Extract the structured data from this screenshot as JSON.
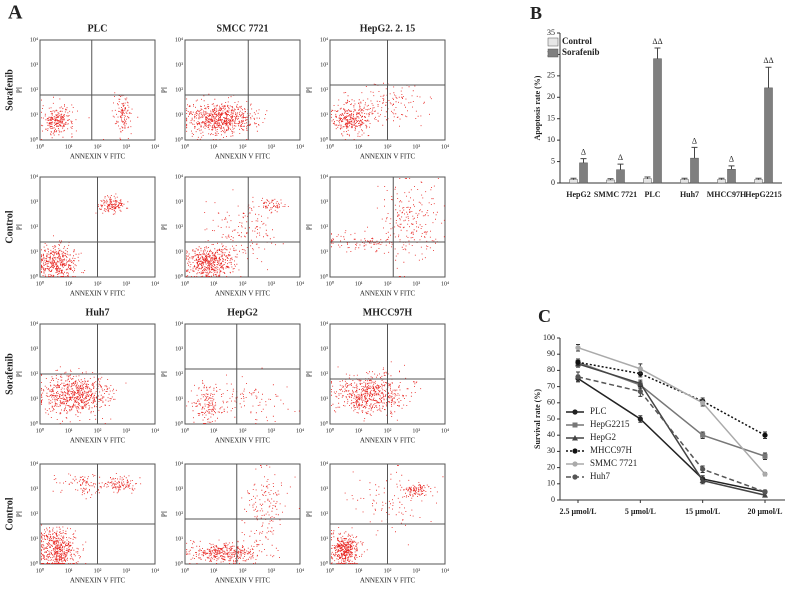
{
  "panel_labels": [
    "A",
    "B",
    "C"
  ],
  "flow": {
    "titles": [
      "PLC",
      "SMCC 7721",
      "HepG2. 2. 15",
      "Huh7",
      "HepG2",
      "MHCC97H"
    ],
    "row_labels": [
      "Sorafenib",
      "Control",
      "Sorafenib",
      "Control"
    ],
    "x_label": "ANNEXIN V FITC",
    "y_label": "PI",
    "ticks": [
      {
        "value": 1,
        "label": "10⁰"
      },
      {
        "value": 10,
        "label": "10¹"
      },
      {
        "value": 100,
        "label": "10²"
      },
      {
        "value": 1000,
        "label": "10³"
      },
      {
        "value": 10000,
        "label": "10⁴"
      }
    ]
  },
  "chart_data": [
    {
      "type": "bar",
      "y_label": "Apoptosis rate (%)",
      "categories": [
        "HepG2",
        "SMMC 7721",
        "PLC",
        "Huh7",
        "MHCC97H",
        "HepG2215"
      ],
      "series": [
        {
          "name": "Control",
          "color": "#e6e6e6",
          "values": [
            0.8,
            0.7,
            1,
            0.8,
            0.8,
            0.8
          ],
          "errors": [
            0.3,
            0.3,
            0.4,
            0.3,
            0.3,
            0.3
          ]
        },
        {
          "name": "Sorafenib",
          "color": "#7f7f7f",
          "values": [
            4.7,
            3.1,
            29,
            5.8,
            3.2,
            22.2
          ],
          "errors": [
            1,
            1.3,
            2.5,
            2.5,
            0.8,
            4.8
          ],
          "annotations": [
            "Δ",
            "Δ",
            "ΔΔ",
            "Δ",
            "Δ",
            "ΔΔ"
          ]
        }
      ],
      "ylim": [
        0,
        35
      ],
      "yticks": [
        0,
        5,
        10,
        15,
        20,
        25,
        30,
        35
      ],
      "legend": "top-left"
    },
    {
      "type": "line",
      "y_label": "Survival rate (%)",
      "categories": [
        "2.5 μmol/L",
        "5 μmol/L",
        "15 μmol/L",
        "20 μmol/L"
      ],
      "series": [
        {
          "name": "PLC",
          "color": "#222222",
          "style": "solid",
          "marker": "circle",
          "values": [
            75,
            50,
            13,
            5
          ],
          "errors": [
            2,
            2,
            2,
            1
          ]
        },
        {
          "name": "HepG2215",
          "color": "#777777",
          "style": "solid",
          "marker": "square",
          "values": [
            85,
            71,
            40,
            27
          ],
          "errors": [
            2,
            2,
            2,
            2
          ]
        },
        {
          "name": "HepG2",
          "color": "#444444",
          "style": "solid",
          "marker": "triangle",
          "values": [
            84,
            72,
            12,
            3
          ],
          "errors": [
            2,
            2,
            2,
            1
          ]
        },
        {
          "name": "MHCC97H",
          "color": "#111111",
          "style": "dotted",
          "marker": "circle",
          "values": [
            85,
            78,
            61,
            40
          ],
          "errors": [
            2,
            2,
            2,
            2
          ]
        },
        {
          "name": "SMMC 7721",
          "color": "#aaaaaa",
          "style": "solid",
          "marker": "circle",
          "values": [
            94,
            81,
            60,
            16
          ],
          "errors": [
            2,
            3,
            2,
            1
          ]
        },
        {
          "name": "Huh7",
          "color": "#555555",
          "style": "dashed",
          "marker": "circle",
          "values": [
            76,
            67,
            19,
            5
          ],
          "errors": [
            3,
            3,
            2,
            1
          ]
        }
      ],
      "ylim": [
        0,
        100
      ],
      "yticks": [
        0,
        10,
        20,
        30,
        40,
        50,
        60,
        70,
        80,
        90,
        100
      ],
      "legend": "bottom-left"
    }
  ]
}
